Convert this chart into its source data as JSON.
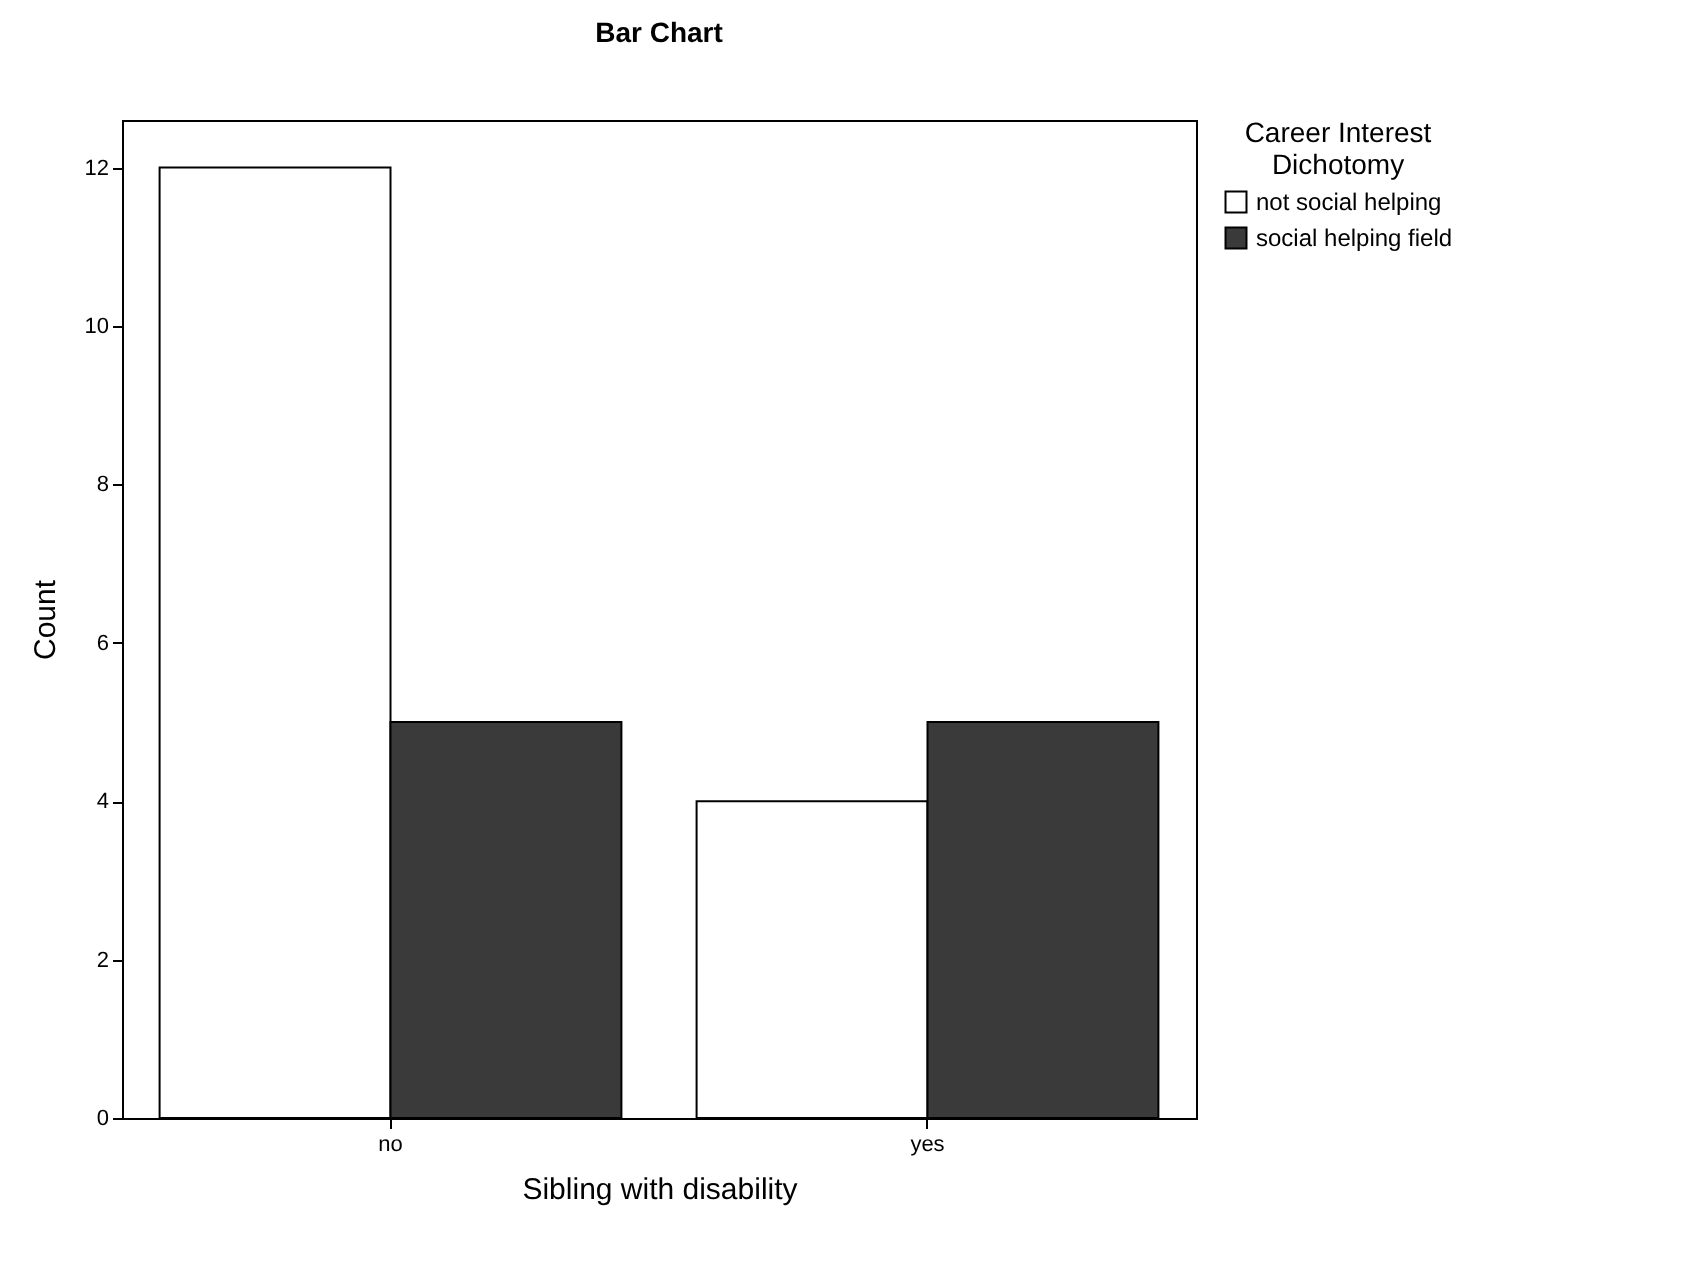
{
  "chart_data": {
    "type": "bar",
    "title": "Bar Chart",
    "xlabel": "Sibling with disability",
    "ylabel": "Count",
    "legend_title": "Career Interest Dichotomy",
    "categories": [
      "no",
      "yes"
    ],
    "series": [
      {
        "name": "not social helping",
        "color": "#ffffff",
        "values": [
          12,
          4
        ]
      },
      {
        "name": "social helping field",
        "color": "#3a3a3a",
        "values": [
          5,
          5
        ]
      }
    ],
    "ylim": [
      0,
      12.6
    ],
    "yticks": [
      0,
      2,
      4,
      6,
      8,
      10,
      12
    ],
    "grid": false,
    "legend": "top right"
  }
}
